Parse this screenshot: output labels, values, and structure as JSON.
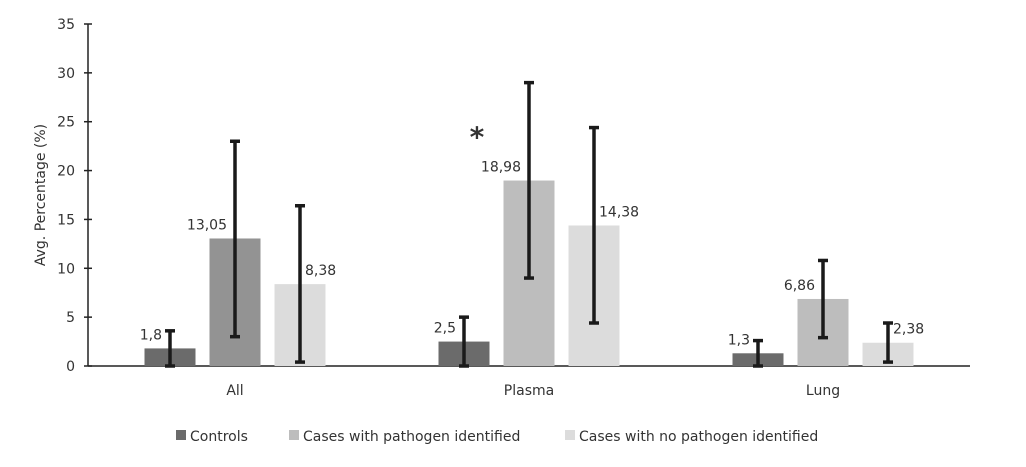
{
  "chart_data": {
    "type": "bar",
    "title": "",
    "xlabel": "",
    "ylabel": "Avg. Percentage (%)",
    "ylim": [
      0,
      35
    ],
    "yticks": [
      0,
      5,
      10,
      15,
      20,
      25,
      30,
      35
    ],
    "grid": false,
    "legend_position": "bottom",
    "categories": [
      "All",
      "Plasma",
      "Lung"
    ],
    "series": [
      {
        "name": "Controls",
        "color": "#6b6b6b",
        "values": [
          1.8,
          2.5,
          1.3
        ],
        "value_labels": [
          "1,8",
          "2,5",
          "1,3"
        ],
        "error_low": [
          0,
          0,
          0
        ],
        "error_high": [
          3.6,
          5.0,
          2.6
        ]
      },
      {
        "name": "Cases with pathogen identified",
        "color": "#bdbdbd",
        "point_colors": [
          "#939393",
          "#bdbdbd",
          "#bdbdbd"
        ],
        "values": [
          13.05,
          18.98,
          6.86
        ],
        "value_labels": [
          "13,05",
          "18,98",
          "6,86"
        ],
        "error_low": [
          3.0,
          9.0,
          2.9
        ],
        "error_high": [
          23.0,
          29.0,
          10.8
        ]
      },
      {
        "name": "Cases with no pathogen identified",
        "color": "#dcdcdc",
        "values": [
          8.38,
          14.38,
          2.38
        ],
        "value_labels": [
          "8,38",
          "14,38",
          "2,38"
        ],
        "error_low": [
          0.4,
          4.4,
          0.4
        ],
        "error_high": [
          16.4,
          24.4,
          4.4
        ]
      }
    ],
    "annotations": [
      {
        "text": "*",
        "category": "Plasma",
        "series": "Cases with pathogen identified",
        "y": 24
      }
    ]
  }
}
